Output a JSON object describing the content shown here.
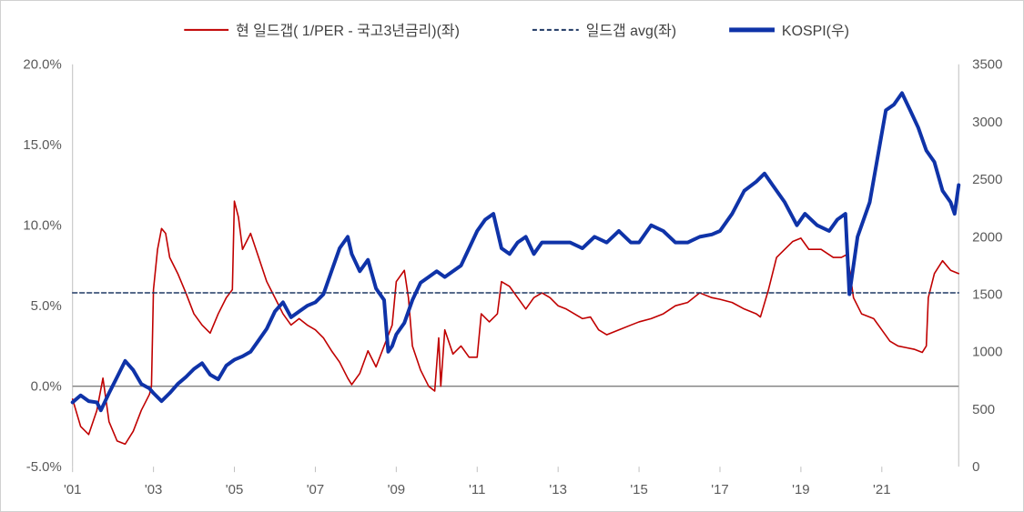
{
  "chart_data": {
    "type": "line",
    "title": "",
    "x_tick_labels": [
      "'01",
      "'03",
      "'05",
      "'07",
      "'09",
      "'11",
      "'13",
      "'15",
      "'17",
      "'19",
      "'21"
    ],
    "x_tick_years": [
      2001,
      2003,
      2005,
      2007,
      2009,
      2011,
      2013,
      2015,
      2017,
      2019,
      2021
    ],
    "xlim": [
      2001.0,
      2022.9
    ],
    "y_left": {
      "ylim": [
        -5.0,
        20.0
      ],
      "unit": "%",
      "ticks": [
        "-5.0%",
        "0.0%",
        "5.0%",
        "10.0%",
        "15.0%",
        "20.0%"
      ],
      "tick_values": [
        -5,
        0,
        5,
        10,
        15,
        20
      ]
    },
    "y_right": {
      "ylim": [
        0,
        3500
      ],
      "ticks": [
        "0",
        "500",
        "1000",
        "1500",
        "2000",
        "2500",
        "3000",
        "3500"
      ],
      "tick_values": [
        0,
        500,
        1000,
        1500,
        2000,
        2500,
        3000,
        3500
      ]
    },
    "legend_position": "top",
    "series": [
      {
        "name": "현 일드갭( 1/PER - 국고3년금리)(좌)",
        "axis": "left",
        "color": "#c00000",
        "style": "solid",
        "points": [
          [
            2001.0,
            -0.8
          ],
          [
            2001.2,
            -2.5
          ],
          [
            2001.4,
            -3.0
          ],
          [
            2001.6,
            -1.5
          ],
          [
            2001.75,
            0.5
          ],
          [
            2001.9,
            -2.2
          ],
          [
            2002.1,
            -3.4
          ],
          [
            2002.3,
            -3.6
          ],
          [
            2002.5,
            -2.8
          ],
          [
            2002.7,
            -1.5
          ],
          [
            2002.9,
            -0.5
          ],
          [
            2002.95,
            0.0
          ],
          [
            2003.0,
            6.0
          ],
          [
            2003.1,
            8.5
          ],
          [
            2003.2,
            9.8
          ],
          [
            2003.3,
            9.5
          ],
          [
            2003.4,
            8.0
          ],
          [
            2003.6,
            7.0
          ],
          [
            2003.8,
            5.8
          ],
          [
            2004.0,
            4.5
          ],
          [
            2004.2,
            3.8
          ],
          [
            2004.4,
            3.3
          ],
          [
            2004.6,
            4.5
          ],
          [
            2004.8,
            5.5
          ],
          [
            2004.95,
            6.0
          ],
          [
            2005.0,
            11.5
          ],
          [
            2005.1,
            10.5
          ],
          [
            2005.2,
            8.5
          ],
          [
            2005.4,
            9.5
          ],
          [
            2005.6,
            8.0
          ],
          [
            2005.8,
            6.5
          ],
          [
            2006.0,
            5.5
          ],
          [
            2006.2,
            4.5
          ],
          [
            2006.4,
            3.8
          ],
          [
            2006.6,
            4.2
          ],
          [
            2006.8,
            3.8
          ],
          [
            2007.0,
            3.5
          ],
          [
            2007.2,
            3.0
          ],
          [
            2007.4,
            2.2
          ],
          [
            2007.6,
            1.5
          ],
          [
            2007.8,
            0.5
          ],
          [
            2007.9,
            0.1
          ],
          [
            2008.1,
            0.8
          ],
          [
            2008.3,
            2.2
          ],
          [
            2008.5,
            1.2
          ],
          [
            2008.7,
            2.5
          ],
          [
            2008.9,
            3.8
          ],
          [
            2009.0,
            6.5
          ],
          [
            2009.2,
            7.2
          ],
          [
            2009.3,
            5.5
          ],
          [
            2009.4,
            2.5
          ],
          [
            2009.6,
            1.0
          ],
          [
            2009.8,
            0.0
          ],
          [
            2009.95,
            -0.3
          ],
          [
            2010.05,
            3.0
          ],
          [
            2010.1,
            0.0
          ],
          [
            2010.2,
            3.5
          ],
          [
            2010.4,
            2.0
          ],
          [
            2010.6,
            2.5
          ],
          [
            2010.8,
            1.8
          ],
          [
            2011.0,
            1.8
          ],
          [
            2011.1,
            4.5
          ],
          [
            2011.3,
            4.0
          ],
          [
            2011.5,
            4.5
          ],
          [
            2011.6,
            6.5
          ],
          [
            2011.8,
            6.2
          ],
          [
            2012.0,
            5.5
          ],
          [
            2012.2,
            4.8
          ],
          [
            2012.4,
            5.5
          ],
          [
            2012.6,
            5.8
          ],
          [
            2012.8,
            5.5
          ],
          [
            2013.0,
            5.0
          ],
          [
            2013.2,
            4.8
          ],
          [
            2013.4,
            4.5
          ],
          [
            2013.6,
            4.2
          ],
          [
            2013.8,
            4.3
          ],
          [
            2014.0,
            3.5
          ],
          [
            2014.2,
            3.2
          ],
          [
            2014.5,
            3.5
          ],
          [
            2014.8,
            3.8
          ],
          [
            2015.0,
            4.0
          ],
          [
            2015.3,
            4.2
          ],
          [
            2015.6,
            4.5
          ],
          [
            2015.9,
            5.0
          ],
          [
            2016.2,
            5.2
          ],
          [
            2016.5,
            5.8
          ],
          [
            2016.8,
            5.5
          ],
          [
            2017.0,
            5.4
          ],
          [
            2017.3,
            5.2
          ],
          [
            2017.6,
            4.8
          ],
          [
            2017.9,
            4.5
          ],
          [
            2018.0,
            4.3
          ],
          [
            2018.2,
            6.0
          ],
          [
            2018.4,
            8.0
          ],
          [
            2018.6,
            8.5
          ],
          [
            2018.8,
            9.0
          ],
          [
            2019.0,
            9.2
          ],
          [
            2019.2,
            8.5
          ],
          [
            2019.5,
            8.5
          ],
          [
            2019.8,
            8.0
          ],
          [
            2020.0,
            8.0
          ],
          [
            2020.15,
            8.2
          ],
          [
            2020.3,
            5.5
          ],
          [
            2020.5,
            4.5
          ],
          [
            2020.8,
            4.2
          ],
          [
            2021.0,
            3.5
          ],
          [
            2021.2,
            2.8
          ],
          [
            2021.4,
            2.5
          ],
          [
            2021.6,
            2.4
          ],
          [
            2021.8,
            2.3
          ],
          [
            2022.0,
            2.1
          ],
          [
            2022.1,
            2.5
          ],
          [
            2022.15,
            5.5
          ],
          [
            2022.3,
            7.0
          ],
          [
            2022.5,
            7.8
          ],
          [
            2022.7,
            7.2
          ],
          [
            2022.9,
            7.0
          ]
        ]
      },
      {
        "name": "일드갭 avg(좌)",
        "axis": "left",
        "color": "#1f3864",
        "style": "dashed",
        "points": [
          [
            2001.0,
            5.8
          ],
          [
            2022.9,
            5.8
          ]
        ]
      },
      {
        "name": "KOSPI(우)",
        "axis": "right",
        "color": "#0f33a8",
        "style": "solid",
        "points": [
          [
            2001.0,
            560
          ],
          [
            2001.2,
            620
          ],
          [
            2001.4,
            570
          ],
          [
            2001.6,
            560
          ],
          [
            2001.7,
            490
          ],
          [
            2001.9,
            640
          ],
          [
            2002.1,
            780
          ],
          [
            2002.3,
            920
          ],
          [
            2002.5,
            840
          ],
          [
            2002.7,
            720
          ],
          [
            2002.9,
            680
          ],
          [
            2003.0,
            640
          ],
          [
            2003.2,
            570
          ],
          [
            2003.4,
            640
          ],
          [
            2003.6,
            720
          ],
          [
            2003.8,
            780
          ],
          [
            2004.0,
            850
          ],
          [
            2004.2,
            900
          ],
          [
            2004.4,
            800
          ],
          [
            2004.6,
            760
          ],
          [
            2004.8,
            880
          ],
          [
            2005.0,
            930
          ],
          [
            2005.2,
            960
          ],
          [
            2005.4,
            1000
          ],
          [
            2005.6,
            1100
          ],
          [
            2005.8,
            1200
          ],
          [
            2006.0,
            1350
          ],
          [
            2006.2,
            1430
          ],
          [
            2006.4,
            1300
          ],
          [
            2006.6,
            1350
          ],
          [
            2006.8,
            1400
          ],
          [
            2007.0,
            1430
          ],
          [
            2007.2,
            1500
          ],
          [
            2007.4,
            1700
          ],
          [
            2007.6,
            1900
          ],
          [
            2007.8,
            2000
          ],
          [
            2007.9,
            1850
          ],
          [
            2008.1,
            1700
          ],
          [
            2008.3,
            1800
          ],
          [
            2008.5,
            1550
          ],
          [
            2008.7,
            1450
          ],
          [
            2008.8,
            1000
          ],
          [
            2008.9,
            1050
          ],
          [
            2009.0,
            1150
          ],
          [
            2009.2,
            1250
          ],
          [
            2009.4,
            1450
          ],
          [
            2009.6,
            1600
          ],
          [
            2009.8,
            1650
          ],
          [
            2010.0,
            1700
          ],
          [
            2010.2,
            1650
          ],
          [
            2010.4,
            1700
          ],
          [
            2010.6,
            1750
          ],
          [
            2010.8,
            1900
          ],
          [
            2011.0,
            2050
          ],
          [
            2011.2,
            2150
          ],
          [
            2011.4,
            2200
          ],
          [
            2011.6,
            1900
          ],
          [
            2011.8,
            1850
          ],
          [
            2012.0,
            1950
          ],
          [
            2012.2,
            2000
          ],
          [
            2012.4,
            1850
          ],
          [
            2012.6,
            1950
          ],
          [
            2012.8,
            1950
          ],
          [
            2013.0,
            1950
          ],
          [
            2013.3,
            1950
          ],
          [
            2013.6,
            1900
          ],
          [
            2013.9,
            2000
          ],
          [
            2014.2,
            1950
          ],
          [
            2014.5,
            2050
          ],
          [
            2014.8,
            1950
          ],
          [
            2015.0,
            1950
          ],
          [
            2015.3,
            2100
          ],
          [
            2015.6,
            2050
          ],
          [
            2015.9,
            1950
          ],
          [
            2016.2,
            1950
          ],
          [
            2016.5,
            2000
          ],
          [
            2016.8,
            2020
          ],
          [
            2017.0,
            2050
          ],
          [
            2017.3,
            2200
          ],
          [
            2017.6,
            2400
          ],
          [
            2017.9,
            2480
          ],
          [
            2018.1,
            2550
          ],
          [
            2018.3,
            2450
          ],
          [
            2018.6,
            2300
          ],
          [
            2018.9,
            2100
          ],
          [
            2019.1,
            2200
          ],
          [
            2019.4,
            2100
          ],
          [
            2019.7,
            2050
          ],
          [
            2019.9,
            2150
          ],
          [
            2020.1,
            2200
          ],
          [
            2020.2,
            1500
          ],
          [
            2020.4,
            2000
          ],
          [
            2020.7,
            2300
          ],
          [
            2020.9,
            2700
          ],
          [
            2021.1,
            3100
          ],
          [
            2021.3,
            3150
          ],
          [
            2021.5,
            3250
          ],
          [
            2021.7,
            3100
          ],
          [
            2021.9,
            2950
          ],
          [
            2022.1,
            2750
          ],
          [
            2022.3,
            2650
          ],
          [
            2022.5,
            2400
          ],
          [
            2022.7,
            2300
          ],
          [
            2022.8,
            2200
          ],
          [
            2022.9,
            2450
          ]
        ]
      }
    ]
  }
}
